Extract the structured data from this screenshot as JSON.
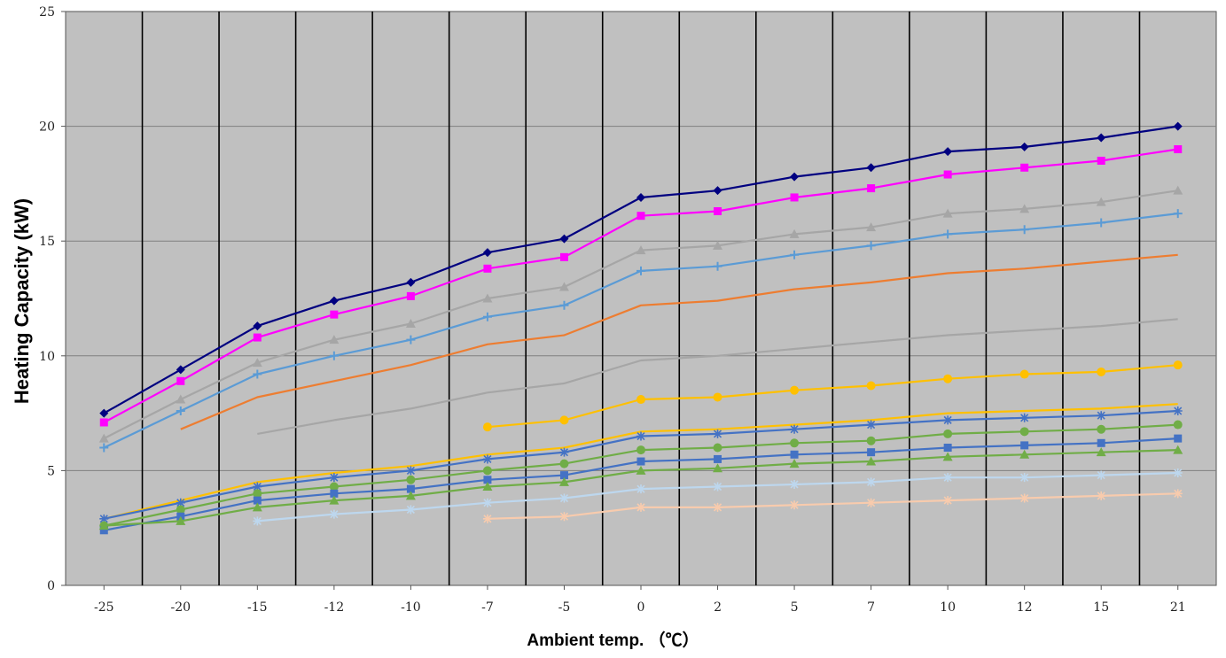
{
  "chart_data": {
    "type": "line",
    "title": "",
    "xlabel": "Ambient temp. （℃）",
    "ylabel": "Heating Capacity (kW)",
    "ylim": [
      0,
      25
    ],
    "yticks": [
      "0",
      "5",
      "10",
      "15",
      "20",
      "25"
    ],
    "categories": [
      "-25",
      "-20",
      "-15",
      "-12",
      "-10",
      "-7",
      "-5",
      "0",
      "2",
      "5",
      "7",
      "10",
      "12",
      "15",
      "21"
    ],
    "grid": "horizontal gridlines at y ticks, vertical lines between categories",
    "plot_background": "#c0c0c0",
    "legend": "none",
    "series": [
      {
        "color": "#000080",
        "marker": "diamond",
        "values": [
          7.5,
          9.4,
          11.3,
          12.4,
          13.2,
          14.5,
          15.1,
          16.9,
          17.2,
          17.8,
          18.2,
          18.9,
          19.1,
          19.5,
          20.0
        ]
      },
      {
        "color": "#ff00ff",
        "marker": "square",
        "values": [
          7.1,
          8.9,
          10.8,
          11.8,
          12.6,
          13.8,
          14.3,
          16.1,
          16.3,
          16.9,
          17.3,
          17.9,
          18.2,
          18.5,
          19.0
        ]
      },
      {
        "color": "#a6a6a6",
        "marker": "triangle",
        "values": [
          6.4,
          8.1,
          9.7,
          10.7,
          11.4,
          12.5,
          13.0,
          14.6,
          14.8,
          15.3,
          15.6,
          16.2,
          16.4,
          16.7,
          17.2
        ]
      },
      {
        "color": "#5b9bd5",
        "marker": "plus",
        "values": [
          6.0,
          7.6,
          9.2,
          10.0,
          10.7,
          11.7,
          12.2,
          13.7,
          13.9,
          14.4,
          14.8,
          15.3,
          15.5,
          15.8,
          16.2
        ]
      },
      {
        "color": "#ed7d31",
        "marker": "none",
        "values": [
          null,
          6.8,
          8.2,
          8.9,
          9.6,
          10.5,
          10.9,
          12.2,
          12.4,
          12.9,
          13.2,
          13.6,
          13.8,
          14.1,
          14.4
        ]
      },
      {
        "color": "#a6a6a6",
        "marker": "none",
        "values": [
          null,
          null,
          6.6,
          7.2,
          7.7,
          8.4,
          8.8,
          9.8,
          10.0,
          10.3,
          10.6,
          10.9,
          11.1,
          11.3,
          11.6
        ]
      },
      {
        "color": "#ffc000",
        "marker": "circle",
        "values": [
          null,
          null,
          null,
          null,
          null,
          6.9,
          7.2,
          8.1,
          8.2,
          8.5,
          8.7,
          9.0,
          9.2,
          9.3,
          9.6
        ]
      },
      {
        "color": "#ffc000",
        "marker": "none",
        "values": [
          2.9,
          3.7,
          4.5,
          4.9,
          5.2,
          5.7,
          6.0,
          6.7,
          6.8,
          7.0,
          7.2,
          7.5,
          7.6,
          7.7,
          7.9
        ]
      },
      {
        "color": "#4472c4",
        "marker": "star",
        "values": [
          2.9,
          3.6,
          4.3,
          4.7,
          5.0,
          5.5,
          5.8,
          6.5,
          6.6,
          6.8,
          7.0,
          7.2,
          7.3,
          7.4,
          7.6
        ]
      },
      {
        "color": "#70ad47",
        "marker": "circle",
        "values": [
          2.6,
          3.3,
          4.0,
          4.3,
          4.6,
          5.0,
          5.3,
          5.9,
          6.0,
          6.2,
          6.3,
          6.6,
          6.7,
          6.8,
          7.0
        ]
      },
      {
        "color": "#4472c4",
        "marker": "square",
        "values": [
          2.4,
          3.0,
          3.7,
          4.0,
          4.2,
          4.6,
          4.8,
          5.4,
          5.5,
          5.7,
          5.8,
          6.0,
          6.1,
          6.2,
          6.4
        ]
      },
      {
        "color": "#70ad47",
        "marker": "triangle",
        "values": [
          2.6,
          2.8,
          3.4,
          3.7,
          3.9,
          4.3,
          4.5,
          5.0,
          5.1,
          5.3,
          5.4,
          5.6,
          5.7,
          5.8,
          5.9
        ]
      },
      {
        "color": "#bdd7ee",
        "marker": "star",
        "values": [
          null,
          null,
          2.8,
          3.1,
          3.3,
          3.6,
          3.8,
          4.2,
          4.3,
          4.4,
          4.5,
          4.7,
          4.7,
          4.8,
          4.9
        ]
      },
      {
        "color": "#f8cbad",
        "marker": "star",
        "values": [
          null,
          null,
          null,
          null,
          null,
          2.9,
          3.0,
          3.4,
          3.4,
          3.5,
          3.6,
          3.7,
          3.8,
          3.9,
          4.0
        ]
      }
    ]
  }
}
